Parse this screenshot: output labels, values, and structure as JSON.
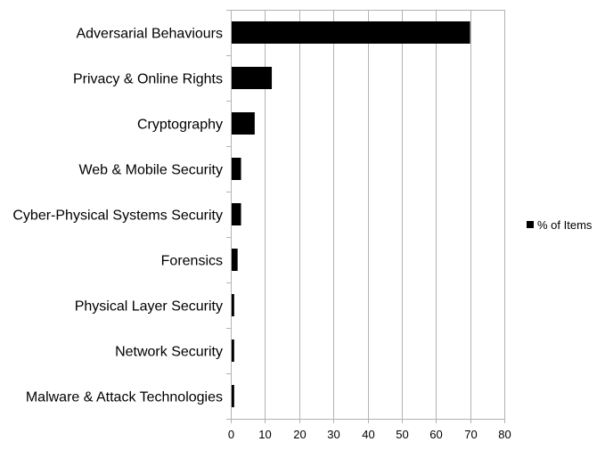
{
  "chart_data": {
    "type": "bar",
    "orientation": "horizontal",
    "categories": [
      "Adversarial Behaviours",
      "Privacy & Online Rights",
      "Cryptography",
      "Web & Mobile Security",
      "Cyber-Physical Systems Security",
      "Forensics",
      "Physical Layer Security",
      "Network Security",
      "Malware & Attack Technologies"
    ],
    "series": [
      {
        "name": "% of Items",
        "color": "#000000",
        "values": [
          70,
          12,
          7,
          3,
          3,
          2,
          1,
          1,
          1
        ]
      }
    ],
    "xlim": [
      0,
      80
    ],
    "xticks": [
      "0",
      "10",
      "20",
      "30",
      "40",
      "50",
      "60",
      "70",
      "80"
    ],
    "xlabel": "",
    "ylabel": "",
    "title": "",
    "grid": "vertical",
    "legend_placement": "right"
  }
}
